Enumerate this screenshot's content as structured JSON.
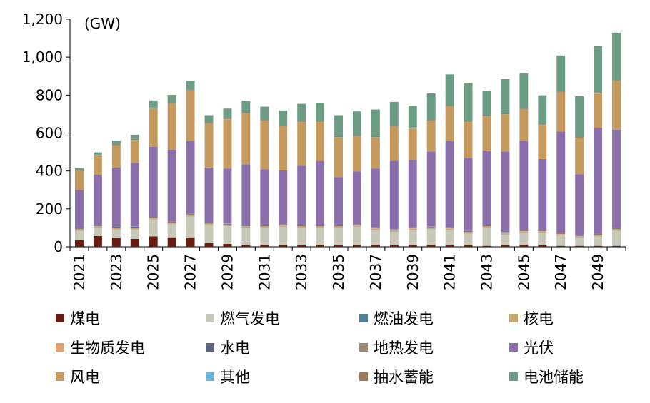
{
  "chart_data": {
    "type": "bar",
    "stacked": true,
    "unit_label": "(GW)",
    "ylim": [
      0,
      1200
    ],
    "yticks": [
      0,
      200,
      400,
      600,
      800,
      1000,
      1200
    ],
    "ytick_labels": [
      "0",
      "200",
      "400",
      "600",
      "800",
      "1,000",
      "1,200"
    ],
    "categories": [
      "2021",
      "2022",
      "2023",
      "2024",
      "2025",
      "2026",
      "2027",
      "2028",
      "2029",
      "2030",
      "2031",
      "2032",
      "2033",
      "2034",
      "2035",
      "2036",
      "2037",
      "2038",
      "2039",
      "2040",
      "2041",
      "2042",
      "2043",
      "2044",
      "2045",
      "2046",
      "2047",
      "2048",
      "2049",
      "2050"
    ],
    "xtick_labels": [
      "2021",
      "",
      "2023",
      "",
      "2025",
      "",
      "2027",
      "",
      "2029",
      "",
      "2031",
      "",
      "2033",
      "",
      "2035",
      "",
      "2037",
      "",
      "2039",
      "",
      "2041",
      "",
      "2043",
      "",
      "2045",
      "",
      "2047",
      "",
      "2049",
      ""
    ],
    "legend_position": "bottom",
    "series": [
      {
        "name": "煤电",
        "color": "#6b1c10",
        "values": [
          35,
          57,
          48,
          42,
          55,
          50,
          50,
          20,
          15,
          12,
          10,
          10,
          10,
          10,
          10,
          10,
          10,
          10,
          10,
          10,
          10,
          10,
          5,
          10,
          10,
          10,
          5,
          5,
          5,
          5
        ]
      },
      {
        "name": "燃气发电",
        "color": "#c7c8b8",
        "values": [
          50,
          45,
          45,
          50,
          90,
          70,
          110,
          95,
          95,
          90,
          90,
          95,
          90,
          90,
          90,
          95,
          80,
          70,
          80,
          85,
          80,
          60,
          95,
          55,
          65,
          65,
          55,
          45,
          50,
          80
        ]
      },
      {
        "name": "燃油发电",
        "color": "#4f7f97",
        "values": [
          1,
          1,
          1,
          1,
          1,
          1,
          1,
          1,
          1,
          1,
          1,
          1,
          1,
          1,
          1,
          1,
          1,
          1,
          1,
          1,
          1,
          1,
          1,
          1,
          1,
          1,
          1,
          1,
          1,
          1
        ]
      },
      {
        "name": "核电",
        "color": "#c5a66e",
        "values": [
          4,
          4,
          5,
          5,
          4,
          4,
          5,
          4,
          4,
          4,
          4,
          4,
          4,
          4,
          4,
          4,
          4,
          4,
          4,
          4,
          4,
          4,
          4,
          4,
          4,
          4,
          4,
          4,
          4,
          4
        ]
      },
      {
        "name": "生物质发电",
        "color": "#e0a070",
        "values": [
          3,
          3,
          3,
          3,
          3,
          3,
          3,
          3,
          3,
          3,
          3,
          3,
          3,
          3,
          3,
          3,
          3,
          3,
          3,
          3,
          3,
          3,
          3,
          3,
          3,
          3,
          3,
          3,
          3,
          3
        ]
      },
      {
        "name": "水电",
        "color": "#5e6480",
        "values": [
          4,
          3,
          5,
          5,
          3,
          3,
          3,
          3,
          3,
          3,
          3,
          3,
          3,
          3,
          3,
          3,
          3,
          3,
          3,
          3,
          3,
          3,
          3,
          3,
          3,
          3,
          3,
          3,
          3,
          3
        ]
      },
      {
        "name": "地热发电",
        "color": "#9a8870",
        "values": [
          2,
          2,
          2,
          2,
          2,
          2,
          2,
          2,
          2,
          2,
          2,
          2,
          2,
          2,
          2,
          2,
          2,
          2,
          2,
          2,
          2,
          2,
          2,
          2,
          2,
          2,
          2,
          2,
          2,
          2
        ]
      },
      {
        "name": "光伏",
        "color": "#8a6fab",
        "values": [
          200,
          265,
          305,
          335,
          370,
          380,
          385,
          290,
          290,
          320,
          295,
          285,
          315,
          340,
          255,
          280,
          310,
          360,
          355,
          395,
          455,
          385,
          395,
          425,
          470,
          375,
          535,
          320,
          560,
          520
        ]
      },
      {
        "name": "风电",
        "color": "#c49a5e",
        "values": [
          100,
          100,
          120,
          120,
          200,
          240,
          265,
          230,
          260,
          270,
          255,
          230,
          230,
          205,
          210,
          185,
          165,
          180,
          165,
          160,
          180,
          190,
          180,
          195,
          165,
          180,
          205,
          190,
          180,
          255
        ]
      },
      {
        "name": "其他",
        "color": "#6db4d4",
        "values": [
          1,
          1,
          1,
          1,
          1,
          1,
          1,
          1,
          1,
          1,
          1,
          1,
          1,
          1,
          1,
          1,
          1,
          1,
          1,
          1,
          1,
          1,
          1,
          1,
          1,
          1,
          1,
          1,
          1,
          1
        ]
      },
      {
        "name": "抽水蓄能",
        "color": "#a07a5c",
        "values": [
          5,
          5,
          5,
          5,
          5,
          5,
          5,
          5,
          5,
          5,
          5,
          5,
          5,
          5,
          5,
          5,
          5,
          5,
          5,
          5,
          5,
          5,
          5,
          5,
          5,
          5,
          5,
          5,
          5,
          5
        ]
      },
      {
        "name": "电池储能",
        "color": "#6c9d84",
        "values": [
          10,
          12,
          20,
          22,
          38,
          42,
          45,
          40,
          50,
          60,
          70,
          80,
          90,
          95,
          110,
          125,
          140,
          125,
          115,
          140,
          165,
          200,
          130,
          180,
          185,
          150,
          190,
          215,
          245,
          250
        ]
      }
    ]
  }
}
